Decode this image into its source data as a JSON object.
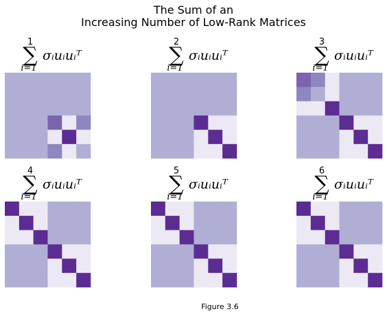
{
  "title": {
    "line1": "The Sum of an",
    "line2": "Increasing Number of Low-Rank Matrices"
  },
  "caption": "Figure 3.6",
  "colors": {
    "level0": "#ece9f4",
    "level1": "#b1aed5",
    "level2": "#8e86c0",
    "level3": "#7a64ae",
    "level4": "#5b2c92",
    "grid": "#d6d3e9"
  },
  "chart_data": {
    "type": "heatmap",
    "color_map": "purples",
    "grid_size": 6,
    "panels": [
      {
        "label": "sum i=1..1 σᵢuᵢuᵢᵀ",
        "upper": "1",
        "sum_symbol": "∑",
        "lower": "i=1",
        "summand": "σᵢuᵢuᵢᵀ",
        "matrix": [
          [
            1,
            1,
            1,
            1,
            1,
            1
          ],
          [
            1,
            1,
            1,
            1,
            1,
            1
          ],
          [
            1,
            1,
            1,
            1,
            1,
            1
          ],
          [
            1,
            1,
            1,
            3,
            0,
            2
          ],
          [
            1,
            1,
            1,
            0,
            4,
            0
          ],
          [
            1,
            1,
            1,
            2,
            0,
            1
          ]
        ]
      },
      {
        "label": "sum i=1..2 σᵢuᵢuᵢᵀ",
        "upper": "2",
        "sum_symbol": "∑",
        "lower": "i=1",
        "summand": "σᵢuᵢuᵢᵀ",
        "matrix": [
          [
            1,
            1,
            1,
            1,
            1,
            1
          ],
          [
            1,
            1,
            1,
            1,
            1,
            1
          ],
          [
            1,
            1,
            1,
            1,
            1,
            1
          ],
          [
            1,
            1,
            1,
            4,
            0,
            0
          ],
          [
            1,
            1,
            1,
            0,
            4,
            0
          ],
          [
            1,
            1,
            1,
            0,
            0,
            4
          ]
        ]
      },
      {
        "label": "sum i=1..3 σᵢuᵢuᵢᵀ",
        "upper": "3",
        "sum_symbol": "∑",
        "lower": "i=1",
        "summand": "σᵢuᵢuᵢᵀ",
        "matrix": [
          [
            3,
            2,
            0,
            1,
            1,
            1
          ],
          [
            2,
            1,
            0,
            1,
            1,
            1
          ],
          [
            0,
            0,
            4,
            1,
            1,
            1
          ],
          [
            1,
            1,
            1,
            4,
            0,
            0
          ],
          [
            1,
            1,
            1,
            0,
            4,
            0
          ],
          [
            1,
            1,
            1,
            0,
            0,
            4
          ]
        ]
      },
      {
        "label": "sum i=1..4 σᵢuᵢuᵢᵀ",
        "upper": "4",
        "sum_symbol": "∑",
        "lower": "i=1",
        "summand": "σᵢuᵢuᵢᵀ",
        "matrix": [
          [
            4,
            0,
            0,
            1,
            1,
            1
          ],
          [
            0,
            4,
            0,
            1,
            1,
            1
          ],
          [
            0,
            0,
            4,
            1,
            1,
            1
          ],
          [
            1,
            1,
            1,
            4,
            0,
            0
          ],
          [
            1,
            1,
            1,
            0,
            4,
            0
          ],
          [
            1,
            1,
            1,
            0,
            0,
            4
          ]
        ]
      },
      {
        "label": "sum i=1..5 σᵢuᵢuᵢᵀ",
        "upper": "5",
        "sum_symbol": "∑",
        "lower": "i=1",
        "summand": "σᵢuᵢuᵢᵀ",
        "matrix": [
          [
            4,
            0,
            0,
            1,
            1,
            1
          ],
          [
            0,
            4,
            0,
            1,
            1,
            1
          ],
          [
            0,
            0,
            4,
            1,
            1,
            1
          ],
          [
            1,
            1,
            1,
            4,
            0,
            0
          ],
          [
            1,
            1,
            1,
            0,
            4,
            0
          ],
          [
            1,
            1,
            1,
            0,
            0,
            4
          ]
        ]
      },
      {
        "label": "sum i=1..6 σᵢuᵢuᵢᵀ",
        "upper": "6",
        "sum_symbol": "∑",
        "lower": "i=1",
        "summand": "σᵢuᵢuᵢᵀ",
        "matrix": [
          [
            4,
            0,
            0,
            1,
            1,
            1
          ],
          [
            0,
            4,
            0,
            1,
            1,
            1
          ],
          [
            0,
            0,
            4,
            1,
            1,
            1
          ],
          [
            1,
            1,
            1,
            4,
            0,
            0
          ],
          [
            1,
            1,
            1,
            0,
            4,
            0
          ],
          [
            1,
            1,
            1,
            0,
            0,
            4
          ]
        ]
      }
    ]
  }
}
